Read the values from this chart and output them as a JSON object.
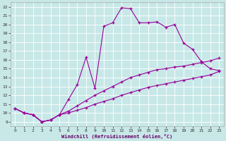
{
  "xlabel": "Windchill (Refroidissement éolien,°C)",
  "bg_color": "#c8e8e8",
  "line_color": "#990099",
  "marker": "+",
  "xlim": [
    -0.5,
    23.5
  ],
  "ylim": [
    8.5,
    22.5
  ],
  "xticks": [
    0,
    1,
    2,
    3,
    4,
    5,
    6,
    7,
    8,
    9,
    10,
    11,
    12,
    13,
    14,
    15,
    16,
    17,
    18,
    19,
    20,
    21,
    22,
    23
  ],
  "yticks": [
    9,
    10,
    11,
    12,
    13,
    14,
    15,
    16,
    17,
    18,
    19,
    20,
    21,
    22
  ],
  "series": [
    {
      "x": [
        0,
        1,
        2,
        3,
        4,
        5,
        6,
        7,
        8,
        9,
        10,
        11,
        12,
        13,
        14,
        15,
        16,
        17,
        18,
        19,
        20,
        21,
        22,
        23
      ],
      "y": [
        10.5,
        10.0,
        9.8,
        9.0,
        9.2,
        9.8,
        11.5,
        13.2,
        16.3,
        12.8,
        19.8,
        20.2,
        21.9,
        21.8,
        20.2,
        20.2,
        20.3,
        19.7,
        20.0,
        17.9,
        17.2,
        15.8,
        15.0,
        14.8
      ]
    },
    {
      "x": [
        0,
        1,
        2,
        3,
        4,
        5,
        6,
        7,
        8,
        9,
        10,
        11,
        12,
        13,
        14,
        15,
        16,
        17,
        18,
        19,
        20,
        21,
        22,
        23
      ],
      "y": [
        10.5,
        10.0,
        9.8,
        9.0,
        9.2,
        9.8,
        10.2,
        10.8,
        11.4,
        12.0,
        12.5,
        13.0,
        13.5,
        14.0,
        14.3,
        14.6,
        14.9,
        15.0,
        15.2,
        15.3,
        15.5,
        15.7,
        15.9,
        16.2
      ]
    },
    {
      "x": [
        0,
        1,
        2,
        3,
        4,
        5,
        6,
        7,
        8,
        9,
        10,
        11,
        12,
        13,
        14,
        15,
        16,
        17,
        18,
        19,
        20,
        21,
        22,
        23
      ],
      "y": [
        10.5,
        10.0,
        9.8,
        9.0,
        9.2,
        9.8,
        10.0,
        10.3,
        10.6,
        11.0,
        11.3,
        11.6,
        12.0,
        12.3,
        12.6,
        12.9,
        13.1,
        13.3,
        13.5,
        13.7,
        13.9,
        14.1,
        14.3,
        14.7
      ]
    }
  ]
}
